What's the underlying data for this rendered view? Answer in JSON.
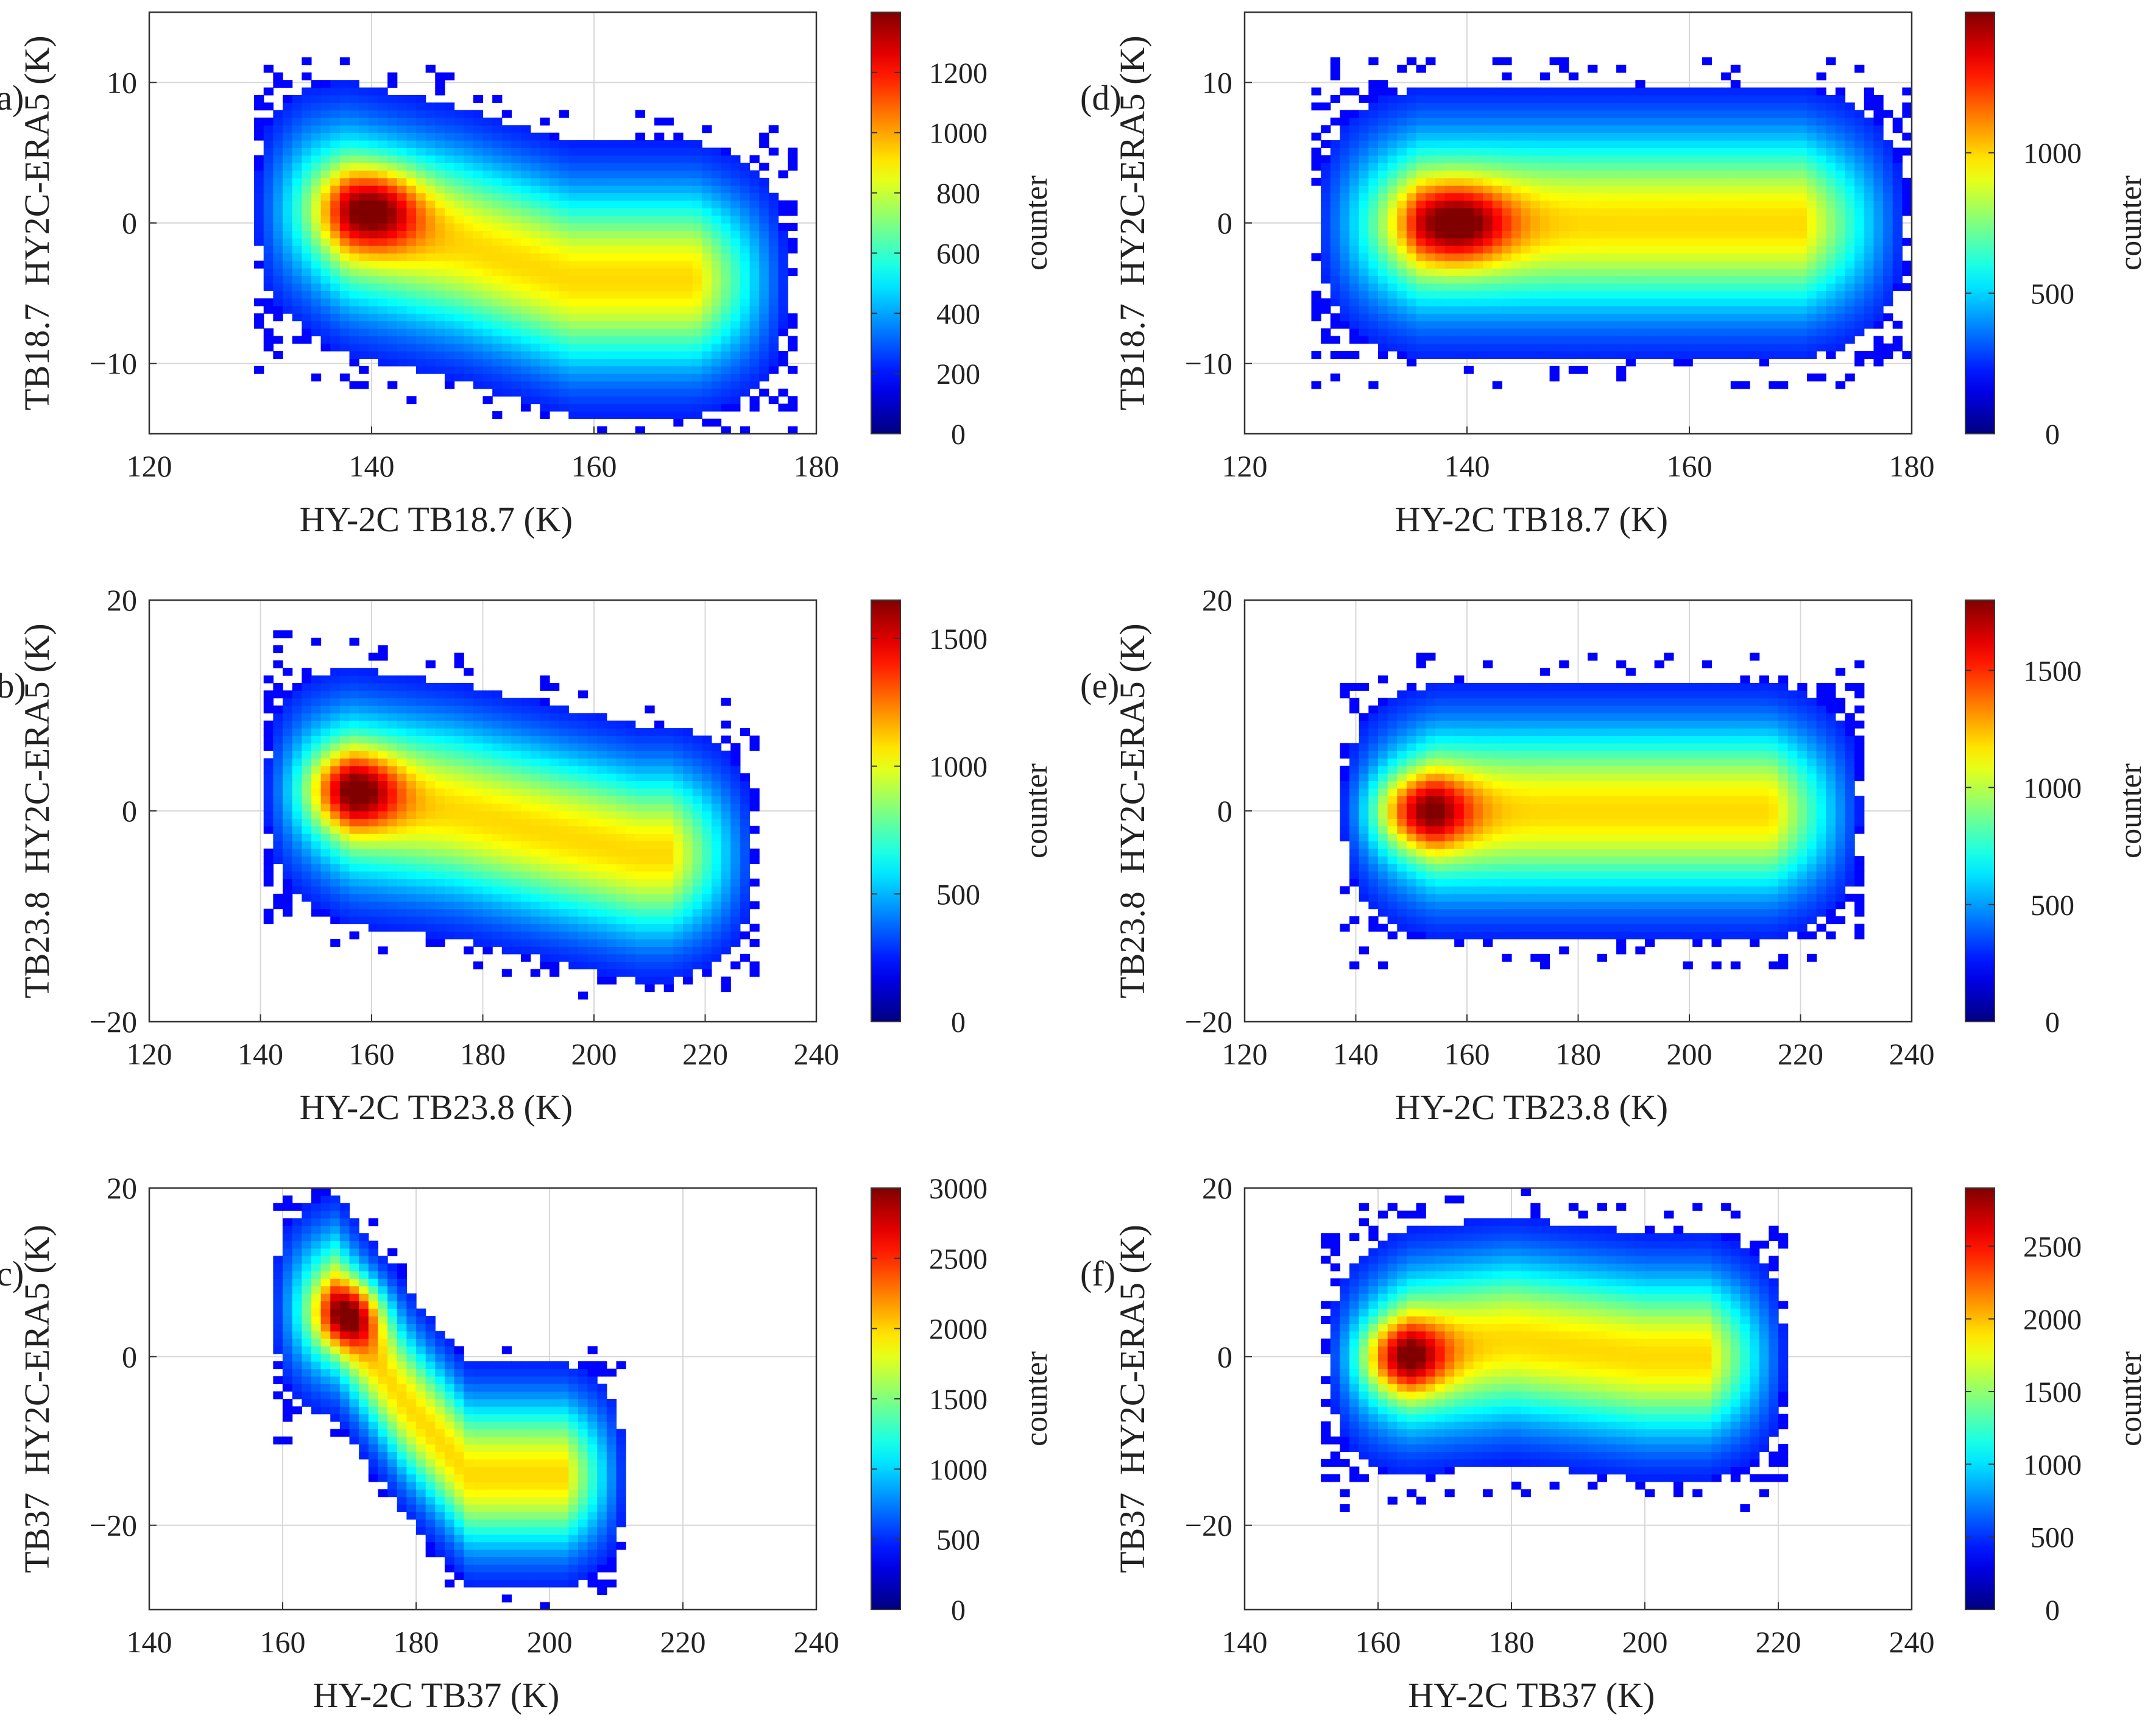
{
  "chart_data": [
    {
      "panel": "(a)",
      "type": "heatmap",
      "xlabel": "HY-2C TB18.7 (K)",
      "ylabel": "TB18.7  HY2C-ERA5 (K)",
      "xlim": [
        120,
        180
      ],
      "ylim": [
        -15,
        15
      ],
      "xticks": [
        120,
        140,
        160,
        180
      ],
      "yticks": [
        -10,
        0,
        10
      ],
      "xtick_labels": [
        "120",
        "140",
        "160",
        "180"
      ],
      "ytick_labels": [
        "−10",
        "0",
        "10"
      ],
      "colorbar_label": "counter",
      "cmax": 1400,
      "cticks": [
        0,
        200,
        400,
        600,
        800,
        1000,
        1200
      ],
      "ctick_labels": [
        "0",
        "200",
        "400",
        "600",
        "800",
        "1000",
        "1200"
      ],
      "grid": true,
      "cluster": {
        "x_start": 129,
        "x_end": 178,
        "ridge": [
          [
            134,
            1
          ],
          [
            148,
            -1.5
          ],
          [
            158,
            -4
          ]
        ],
        "half_width_y": 8,
        "peak": [
          140,
          1
        ],
        "peak_count": 1400
      },
      "colormap": "jet"
    },
    {
      "panel": "(b)",
      "type": "heatmap",
      "xlabel": "HY-2C TB23.8 (K)",
      "ylabel": "TB23.8  HY2C-ERA5 (K)",
      "xlim": [
        120,
        240
      ],
      "ylim": [
        -20,
        20
      ],
      "xticks": [
        120,
        140,
        160,
        180,
        200,
        220,
        240
      ],
      "yticks": [
        -20,
        0,
        20
      ],
      "xtick_labels": [
        "120",
        "140",
        "160",
        "180",
        "200",
        "220",
        "240"
      ],
      "ytick_labels": [
        "−20",
        "0",
        "20"
      ],
      "colorbar_label": "counter",
      "cmax": 1650,
      "cticks": [
        0,
        500,
        1000,
        1500
      ],
      "ctick_labels": [
        "0",
        "500",
        "1000",
        "1500"
      ],
      "grid": true,
      "cluster": {
        "x_start": 140,
        "x_end": 230,
        "ridge": [
          [
            148,
            2
          ],
          [
            175,
            0
          ],
          [
            208,
            -4
          ]
        ],
        "half_width_y": 10,
        "peak": [
          157,
          2
        ],
        "peak_count": 1650
      },
      "colormap": "jet"
    },
    {
      "panel": "(c)",
      "type": "heatmap",
      "xlabel": "HY-2C TB37 (K)",
      "ylabel": "TB37  HY2C-ERA5 (K)",
      "xlim": [
        140,
        240
      ],
      "ylim": [
        -30,
        20
      ],
      "xticks": [
        140,
        160,
        180,
        200,
        220,
        240
      ],
      "yticks": [
        -20,
        0,
        20
      ],
      "xtick_labels": [
        "140",
        "160",
        "180",
        "200",
        "220",
        "240"
      ],
      "ytick_labels": [
        "−20",
        "0",
        "20"
      ],
      "colorbar_label": "counter",
      "cmax": 3000,
      "cticks": [
        0,
        500,
        1000,
        1500,
        2000,
        2500,
        3000
      ],
      "ctick_labels": [
        "0",
        "500",
        "1000",
        "1500",
        "2000",
        "2500",
        "3000"
      ],
      "grid": true,
      "cluster": {
        "x_start": 158,
        "x_end": 212,
        "ridge": [
          [
            168,
            6
          ],
          [
            178,
            -5
          ],
          [
            188,
            -14
          ]
        ],
        "half_width_y": 11,
        "peak": [
          170,
          5
        ],
        "peak_count": 3000
      },
      "colormap": "jet"
    },
    {
      "panel": "(d)",
      "type": "heatmap",
      "xlabel": "HY-2C TB18.7 (K)",
      "ylabel": "TB18.7  HY2C-ERA5 (K)",
      "xlim": [
        120,
        180
      ],
      "ylim": [
        -15,
        15
      ],
      "xticks": [
        120,
        140,
        160,
        180
      ],
      "yticks": [
        -10,
        0,
        10
      ],
      "xtick_labels": [
        "120",
        "140",
        "160",
        "180"
      ],
      "ytick_labels": [
        "−10",
        "0",
        "10"
      ],
      "colorbar_label": "counter",
      "cmax": 1500,
      "cticks": [
        0,
        500,
        1000
      ],
      "ctick_labels": [
        "0",
        "500",
        "1000"
      ],
      "grid": true,
      "cluster": {
        "x_start": 126,
        "x_end": 180,
        "ridge": [
          [
            132,
            0
          ],
          [
            150,
            0
          ],
          [
            166,
            0
          ]
        ],
        "half_width_y": 8,
        "peak": [
          139,
          0
        ],
        "peak_count": 1500
      },
      "colormap": "jet"
    },
    {
      "panel": "(e)",
      "type": "heatmap",
      "xlabel": "HY-2C TB23.8 (K)",
      "ylabel": "TB23.8  HY2C-ERA5 (K)",
      "xlim": [
        120,
        240
      ],
      "ylim": [
        -20,
        20
      ],
      "xticks": [
        120,
        140,
        160,
        180,
        200,
        220,
        240
      ],
      "yticks": [
        -20,
        0,
        20
      ],
      "xtick_labels": [
        "120",
        "140",
        "160",
        "180",
        "200",
        "220",
        "240"
      ],
      "ytick_labels": [
        "−20",
        "0",
        "20"
      ],
      "colorbar_label": "counter",
      "cmax": 1800,
      "cticks": [
        0,
        500,
        1000,
        1500
      ],
      "ctick_labels": [
        "0",
        "500",
        "1000",
        "1500"
      ],
      "grid": true,
      "cluster": {
        "x_start": 137,
        "x_end": 232,
        "ridge": [
          [
            143,
            0
          ],
          [
            180,
            0
          ],
          [
            214,
            0
          ]
        ],
        "half_width_y": 10,
        "peak": [
          152,
          0
        ],
        "peak_count": 1800
      },
      "colormap": "jet"
    },
    {
      "panel": "(f)",
      "type": "heatmap",
      "xlabel": "HY-2C TB37 (K)",
      "ylabel": "TB37  HY2C-ERA5 (K)",
      "xlim": [
        140,
        240
      ],
      "ylim": [
        -30,
        20
      ],
      "xticks": [
        140,
        160,
        180,
        200,
        220,
        240
      ],
      "yticks": [
        -20,
        0,
        20
      ],
      "xtick_labels": [
        "140",
        "160",
        "180",
        "200",
        "220",
        "240"
      ],
      "ytick_labels": [
        "−20",
        "0",
        "20"
      ],
      "colorbar_label": "counter",
      "cmax": 2900,
      "cticks": [
        0,
        500,
        1000,
        1500,
        2000,
        2500
      ],
      "ctick_labels": [
        "0",
        "500",
        "1000",
        "1500",
        "2000",
        "2500"
      ],
      "grid": true,
      "cluster": {
        "x_start": 152,
        "x_end": 222,
        "ridge": [
          [
            158,
            0
          ],
          [
            180,
            2
          ],
          [
            200,
            0
          ]
        ],
        "half_width_y": 12,
        "peak": [
          164,
          0
        ],
        "peak_count": 2900
      },
      "colormap": "jet"
    }
  ]
}
